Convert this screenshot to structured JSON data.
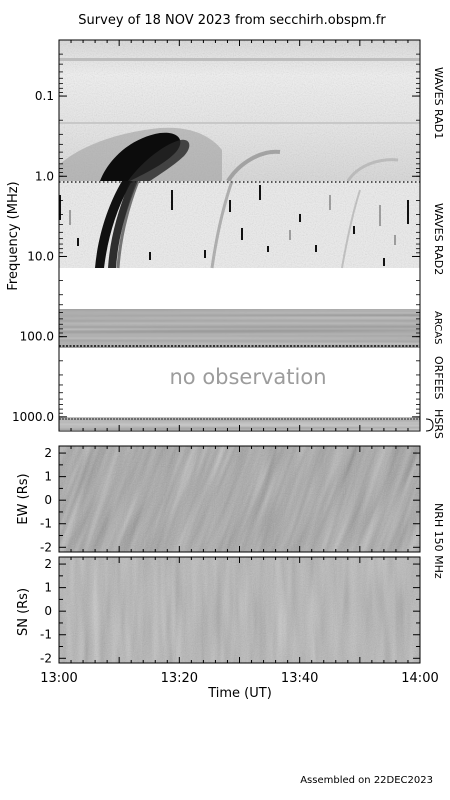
{
  "title": "Survey of 18 NOV 2023 from secchirh.obspm.fr",
  "footer": "Assembled on 22DEC2023",
  "no_observation_text": "no observation",
  "instrument_labels": {
    "waves_rad1": "WAVES RAD1",
    "waves_rad2": "WAVES RAD2",
    "arcas": "ARCAS",
    "orfees": "ORFEES",
    "hsrs": "HSRS",
    "nrh": "NRH 150 MHz"
  },
  "chart_data": [
    {
      "type": "heatmap",
      "name": "dynamic-spectrum",
      "ylabel": "Frequency (MHz)",
      "yscale": "log",
      "ylim": [
        0.02,
        1500
      ],
      "y_reversed": true,
      "yticks": [
        0.1,
        1.0,
        10.0,
        100.0,
        1000.0
      ],
      "ytick_labels": [
        "0.1",
        "1.0",
        "10.0",
        "100.0",
        "1000.0"
      ],
      "xlim": [
        "13:00",
        "14:00"
      ]
    },
    {
      "type": "heatmap",
      "name": "nrh-ew",
      "ylabel": "EW (Rs)",
      "ylim": [
        -2.2,
        2.3
      ],
      "yticks": [
        2,
        1,
        0,
        -1,
        -2
      ],
      "ytick_labels": [
        "2",
        "1",
        "0",
        "-1",
        "-2"
      ],
      "xlim": [
        "13:00",
        "14:00"
      ]
    },
    {
      "type": "heatmap",
      "name": "nrh-sn",
      "ylabel": "SN (Rs)",
      "xlabel": "Time (UT)",
      "ylim": [
        -2.2,
        2.3
      ],
      "yticks": [
        2,
        1,
        0,
        -1,
        -2
      ],
      "ytick_labels": [
        "2",
        "1",
        "0",
        "-1",
        "-2"
      ],
      "xlim": [
        "13:00",
        "14:00"
      ],
      "xticks": [
        "13:00",
        "13:20",
        "13:40",
        "14:00"
      ],
      "xtick_labels": [
        "13:00",
        "13:20",
        "13:40",
        "14:00"
      ]
    }
  ]
}
